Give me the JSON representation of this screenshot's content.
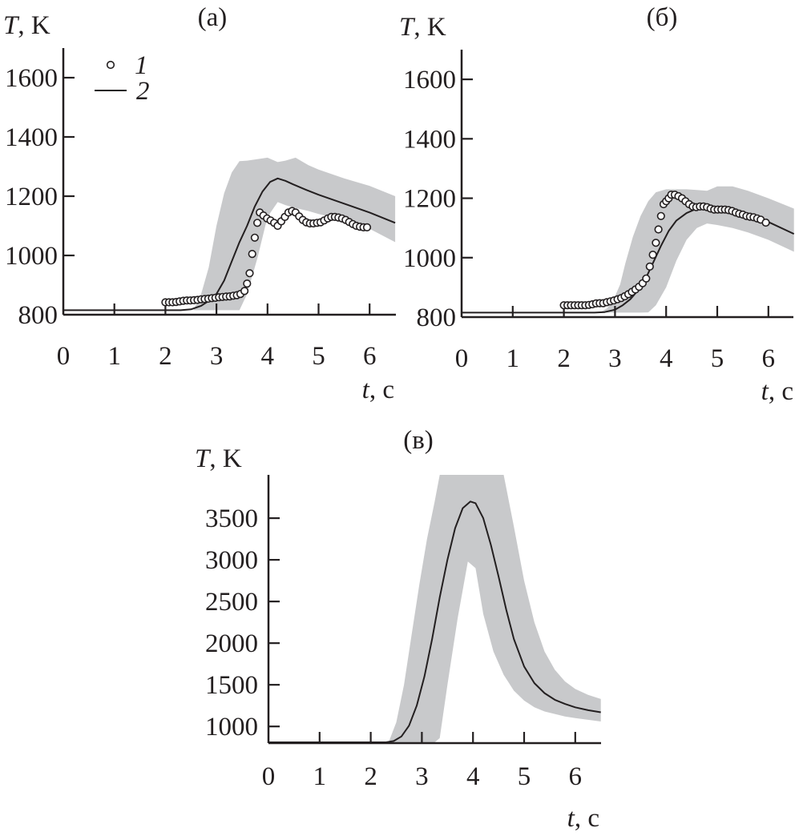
{
  "colors": {
    "band": "#c8c9cb",
    "line": "#231f20",
    "marker_fill": "#ffffff"
  },
  "legend": {
    "items": [
      {
        "marker": "open-circle",
        "label": "1"
      },
      {
        "marker": "solid-line",
        "label": "2"
      }
    ]
  },
  "chart_data": [
    {
      "type": "line",
      "title": "(а)",
      "ylabel_var": "T",
      "ylabel_unit": ", K",
      "xlabel_var": "t",
      "xlabel_unit": ", c",
      "xlim": [
        0,
        6.5
      ],
      "ylim": [
        800,
        1700
      ],
      "xticks": [
        "0",
        "1",
        "2",
        "3",
        "4",
        "5",
        "6"
      ],
      "yticks": [
        "800",
        "1000",
        "1200",
        "1400",
        "1600"
      ],
      "legend_position": "top-left",
      "series": [
        {
          "name": "1",
          "kind": "scatter",
          "x": [
            2.0,
            2.07,
            2.14,
            2.21,
            2.28,
            2.35,
            2.42,
            2.49,
            2.56,
            2.63,
            2.7,
            2.77,
            2.84,
            2.91,
            2.98,
            3.05,
            3.12,
            3.19,
            3.26,
            3.33,
            3.4,
            3.47,
            3.55,
            3.6,
            3.65,
            3.7,
            3.75,
            3.8,
            3.85,
            3.92,
            3.99,
            4.06,
            4.13,
            4.2,
            4.27,
            4.34,
            4.41,
            4.48,
            4.55,
            4.62,
            4.69,
            4.76,
            4.83,
            4.9,
            4.97,
            5.04,
            5.11,
            5.18,
            5.25,
            5.32,
            5.39,
            5.46,
            5.53,
            5.6,
            5.67,
            5.74,
            5.81,
            5.88,
            5.95
          ],
          "y": [
            842,
            842,
            842,
            843,
            845,
            847,
            848,
            848,
            849,
            850,
            852,
            853,
            854,
            856,
            857,
            859,
            860,
            861,
            862,
            864,
            866,
            870,
            880,
            905,
            940,
            1005,
            1060,
            1110,
            1145,
            1135,
            1125,
            1118,
            1110,
            1100,
            1115,
            1130,
            1145,
            1150,
            1145,
            1132,
            1120,
            1112,
            1108,
            1108,
            1110,
            1112,
            1118,
            1125,
            1130,
            1130,
            1128,
            1125,
            1120,
            1113,
            1106,
            1100,
            1097,
            1095,
            1095
          ]
        },
        {
          "name": "2",
          "kind": "line",
          "x": [
            0,
            2.3,
            2.5,
            2.7,
            2.9,
            3.0,
            3.15,
            3.3,
            3.45,
            3.6,
            3.75,
            3.9,
            4.05,
            4.2,
            4.35,
            4.5,
            4.75,
            5.0,
            5.5,
            6.0,
            6.5
          ],
          "y": [
            815,
            815,
            818,
            830,
            852,
            870,
            915,
            980,
            1045,
            1100,
            1165,
            1215,
            1248,
            1260,
            1252,
            1240,
            1222,
            1205,
            1175,
            1145,
            1110
          ]
        },
        {
          "kind": "band",
          "x": [
            2.55,
            2.7,
            2.85,
            3.0,
            3.15,
            3.3,
            3.45,
            3.6,
            3.8,
            4.0,
            4.2,
            4.35,
            4.55,
            4.8,
            5.0,
            5.5,
            6.0,
            6.5
          ],
          "upper": [
            815,
            870,
            960,
            1100,
            1210,
            1280,
            1318,
            1320,
            1325,
            1330,
            1315,
            1320,
            1330,
            1305,
            1290,
            1260,
            1235,
            1200
          ],
          "lower": [
            815,
            815,
            815,
            815,
            815,
            815,
            815,
            870,
            990,
            1130,
            1180,
            1170,
            1160,
            1150,
            1140,
            1120,
            1090,
            1045
          ]
        }
      ]
    },
    {
      "type": "line",
      "title": "(б)",
      "ylabel_var": "T",
      "ylabel_unit": ", K",
      "xlabel_var": "t",
      "xlabel_unit": ", c",
      "xlim": [
        0,
        6.5
      ],
      "ylim": [
        800,
        1700
      ],
      "xticks": [
        "0",
        "1",
        "2",
        "3",
        "4",
        "5",
        "6"
      ],
      "yticks": [
        "800",
        "1000",
        "1200",
        "1400",
        "1600"
      ],
      "series": [
        {
          "name": "1",
          "kind": "scatter",
          "x": [
            2.0,
            2.07,
            2.14,
            2.21,
            2.28,
            2.35,
            2.42,
            2.49,
            2.56,
            2.63,
            2.7,
            2.77,
            2.84,
            2.91,
            2.98,
            3.05,
            3.12,
            3.19,
            3.26,
            3.33,
            3.4,
            3.47,
            3.54,
            3.61,
            3.68,
            3.74,
            3.8,
            3.85,
            3.9,
            3.95,
            4.0,
            4.05,
            4.1,
            4.17,
            4.24,
            4.31,
            4.38,
            4.45,
            4.52,
            4.59,
            4.66,
            4.73,
            4.8,
            4.87,
            4.94,
            5.01,
            5.08,
            5.15,
            5.22,
            5.29,
            5.36,
            5.43,
            5.5,
            5.57,
            5.64,
            5.71,
            5.78,
            5.85,
            5.95
          ],
          "y": [
            840,
            840,
            840,
            840,
            840,
            840,
            840,
            841,
            843,
            846,
            847,
            847,
            850,
            853,
            856,
            860,
            864,
            870,
            877,
            885,
            893,
            902,
            914,
            930,
            970,
            1010,
            1050,
            1095,
            1140,
            1180,
            1190,
            1200,
            1212,
            1212,
            1207,
            1200,
            1190,
            1180,
            1172,
            1170,
            1172,
            1172,
            1170,
            1165,
            1162,
            1162,
            1162,
            1162,
            1160,
            1157,
            1152,
            1148,
            1145,
            1140,
            1138,
            1136,
            1132,
            1128,
            1118
          ]
        },
        {
          "name": "2",
          "kind": "line",
          "x": [
            0,
            2.6,
            2.8,
            3.0,
            3.15,
            3.3,
            3.45,
            3.6,
            3.75,
            3.9,
            4.05,
            4.2,
            4.4,
            4.6,
            4.8,
            5.0,
            5.5,
            6.0,
            6.5
          ],
          "y": [
            815,
            815,
            817,
            825,
            840,
            860,
            890,
            930,
            985,
            1040,
            1090,
            1125,
            1150,
            1165,
            1170,
            1165,
            1150,
            1120,
            1080
          ]
        },
        {
          "kind": "band",
          "x": [
            2.7,
            2.85,
            3.0,
            3.1,
            3.2,
            3.35,
            3.5,
            3.65,
            3.8,
            4.0,
            4.2,
            4.4,
            4.6,
            4.8,
            5.0,
            5.3,
            5.6,
            6.0,
            6.5
          ],
          "upper": [
            815,
            830,
            870,
            910,
            980,
            1070,
            1140,
            1190,
            1220,
            1230,
            1230,
            1230,
            1228,
            1225,
            1240,
            1240,
            1225,
            1200,
            1165
          ],
          "lower": [
            815,
            815,
            815,
            815,
            815,
            815,
            815,
            816,
            840,
            900,
            990,
            1060,
            1100,
            1115,
            1110,
            1100,
            1085,
            1060,
            1020
          ]
        }
      ]
    },
    {
      "type": "line",
      "title": "(в)",
      "ylabel_var": "T",
      "ylabel_unit": ", K",
      "xlabel_var": "t",
      "xlabel_unit": ", c",
      "xlim": [
        0,
        6.5
      ],
      "ylim": [
        800,
        4020
      ],
      "xticks": [
        "0",
        "1",
        "2",
        "3",
        "4",
        "5",
        "6"
      ],
      "yticks": [
        "1000",
        "1500",
        "2000",
        "2500",
        "3000",
        "3500"
      ],
      "series": [
        {
          "name": "2",
          "kind": "line",
          "x": [
            0,
            2.3,
            2.45,
            2.6,
            2.75,
            2.9,
            3.05,
            3.2,
            3.35,
            3.5,
            3.65,
            3.8,
            3.95,
            4.05,
            4.2,
            4.35,
            4.5,
            4.65,
            4.8,
            5.0,
            5.2,
            5.4,
            5.6,
            5.8,
            6.0,
            6.25,
            6.5
          ],
          "y": [
            810,
            810,
            825,
            880,
            1010,
            1250,
            1600,
            2050,
            2550,
            3000,
            3380,
            3620,
            3700,
            3680,
            3500,
            3180,
            2800,
            2400,
            2050,
            1720,
            1520,
            1400,
            1320,
            1270,
            1230,
            1195,
            1170
          ]
        },
        {
          "kind": "band",
          "x": [
            2.35,
            2.5,
            2.65,
            2.8,
            2.95,
            3.1,
            3.25,
            3.35,
            3.5,
            3.7,
            3.9,
            4.05,
            4.2,
            4.4,
            4.6,
            4.8,
            5.0,
            5.2,
            5.4,
            5.6,
            5.8,
            6.0,
            6.25,
            6.5
          ],
          "upper": [
            810,
            1050,
            1500,
            2100,
            2700,
            3250,
            3700,
            4020,
            4020,
            4020,
            4020,
            4020,
            4020,
            4020,
            4020,
            3400,
            2750,
            2250,
            1900,
            1680,
            1540,
            1450,
            1380,
            1330
          ],
          "lower": [
            810,
            810,
            810,
            810,
            810,
            810,
            810,
            860,
            1500,
            2300,
            2980,
            2900,
            2350,
            1900,
            1620,
            1430,
            1310,
            1230,
            1180,
            1150,
            1120,
            1100,
            1080,
            1060
          ]
        }
      ]
    }
  ]
}
